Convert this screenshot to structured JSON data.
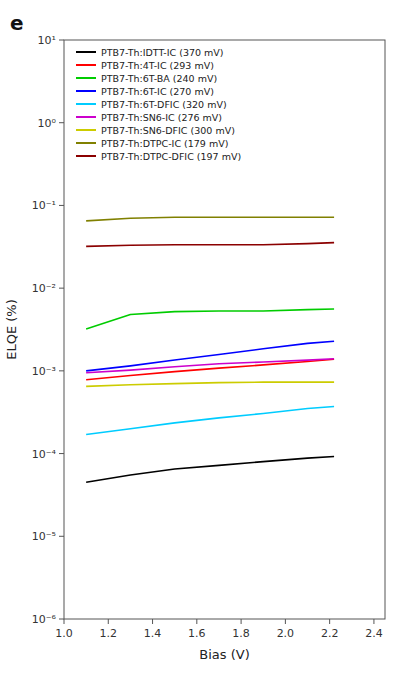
{
  "chart_data": {
    "type": "line",
    "title": "e",
    "xlabel": "Bias (V)",
    "ylabel": "ELQE (%)",
    "log": "y",
    "legend": "upper left",
    "grid": false,
    "xlim": [
      1.0,
      2.45
    ],
    "ylim": [
      1e-06,
      10
    ],
    "xticks": [
      {
        "value": 1.0,
        "label": "1.0"
      },
      1.2,
      1.4,
      1.6,
      1.8,
      {
        "value": 2.0,
        "label": "2.0"
      },
      2.2,
      2.4
    ],
    "yticks": [
      {
        "value": 1e-06,
        "label": "10⁻⁶"
      },
      {
        "value": 1e-05,
        "label": "10⁻⁵"
      },
      {
        "value": 0.0001,
        "label": "10⁻⁴"
      },
      {
        "value": 0.001,
        "label": "10⁻³"
      },
      {
        "value": 0.01,
        "label": "10⁻²"
      },
      {
        "value": 0.1,
        "label": "10⁻¹"
      },
      {
        "value": 1,
        "label": "10⁰"
      },
      {
        "value": 10,
        "label": "10¹"
      }
    ],
    "x": [
      1.1,
      1.3,
      1.5,
      1.7,
      1.9,
      2.1,
      2.22
    ],
    "series": [
      {
        "name": "PTB7-Th:IDTT-IC (370 mV)",
        "color": "#000000",
        "values": [
          4.5e-05,
          5.5e-05,
          6.5e-05,
          7.2e-05,
          8e-05,
          8.8e-05,
          9.2e-05
        ]
      },
      {
        "name": "PTB7-Th:4T-IC (293 mV)",
        "color": "#ff0000",
        "values": [
          0.00078,
          0.00088,
          0.00098,
          0.00108,
          0.00118,
          0.0013,
          0.00138
        ]
      },
      {
        "name": "PTB7-Th:6T-BA (240 mV)",
        "color": "#00cc00",
        "values": [
          0.0032,
          0.0048,
          0.0052,
          0.0053,
          0.0053,
          0.0055,
          0.0056
        ]
      },
      {
        "name": "PTB7-Th:6T-IC (270 mV)",
        "color": "#0000ff",
        "values": [
          0.001,
          0.00115,
          0.00135,
          0.00158,
          0.00185,
          0.00215,
          0.00228
        ]
      },
      {
        "name": "PTB7-Th:6T-DFIC (320 mV)",
        "color": "#00ccff",
        "values": [
          0.00017,
          0.0002,
          0.000235,
          0.00027,
          0.000305,
          0.00035,
          0.00037
        ]
      },
      {
        "name": "PTB7-Th:SN6-IC (276 mV)",
        "color": "#cc00cc",
        "values": [
          0.00095,
          0.00102,
          0.00112,
          0.00122,
          0.00128,
          0.00135,
          0.0014
        ]
      },
      {
        "name": "PTB7-Th:SN6-DFIC (300 mV)",
        "color": "#cccc00",
        "values": [
          0.00065,
          0.00068,
          0.0007,
          0.00072,
          0.00073,
          0.00073,
          0.00073
        ]
      },
      {
        "name": "PTB7-Th:DTPC-IC (179 mV)",
        "color": "#808000",
        "values": [
          0.065,
          0.07,
          0.072,
          0.072,
          0.072,
          0.072,
          0.072
        ]
      },
      {
        "name": "PTB7-Th:DTPC-DFIC (197 mV)",
        "color": "#8b0000",
        "values": [
          0.032,
          0.033,
          0.0335,
          0.0335,
          0.0335,
          0.0345,
          0.0355
        ]
      }
    ]
  }
}
